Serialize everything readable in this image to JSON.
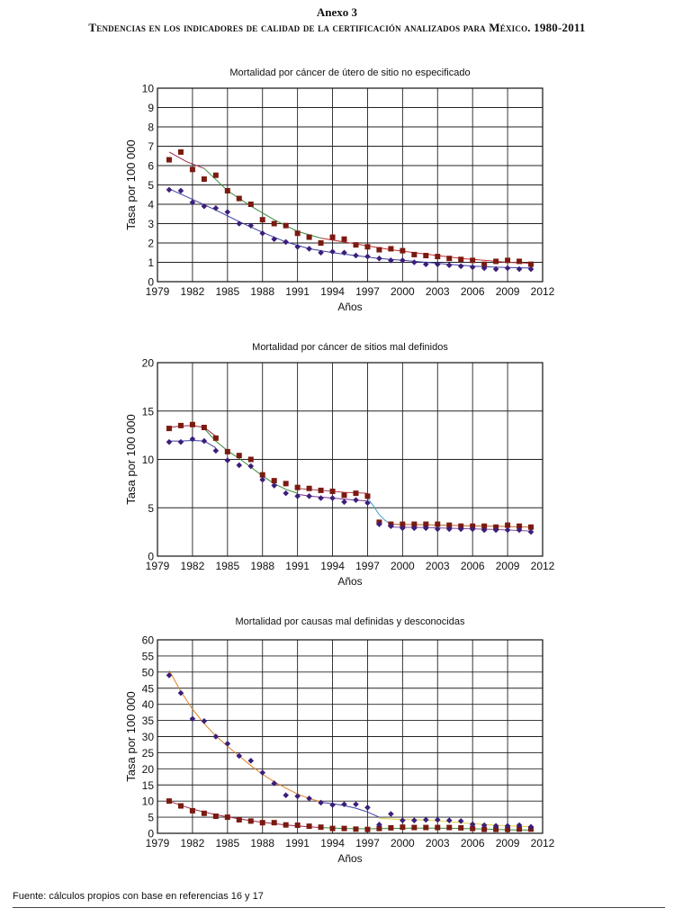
{
  "header": {
    "annex": "Anexo 3",
    "title": "Tendencias en los indicadores de calidad de la certificación analizados para México. 1980-2011"
  },
  "footer": {
    "source": "Fuente: cálculos propios con base en referencias 16 y 17"
  },
  "colors": {
    "series_a": "#7b1a10",
    "series_b": "#3b1e7a"
  },
  "chart_data": [
    {
      "type": "scatter",
      "title": "Mortalidad por cáncer de útero de sitio no especificado",
      "xlabel": "Años",
      "ylabel": "Tasa por 100 000",
      "xlim": [
        1979,
        2012
      ],
      "ylim": [
        0,
        10
      ],
      "xticks": [
        1979,
        1982,
        1985,
        1988,
        1991,
        1994,
        1997,
        2000,
        2003,
        2006,
        2009,
        2012
      ],
      "yticks": [
        0,
        1,
        2,
        3,
        4,
        5,
        6,
        7,
        8,
        9,
        10
      ],
      "grid": true,
      "x": [
        1980,
        1981,
        1982,
        1983,
        1984,
        1985,
        1986,
        1987,
        1988,
        1989,
        1990,
        1991,
        1992,
        1993,
        1994,
        1995,
        1996,
        1997,
        1998,
        1999,
        2000,
        2001,
        2002,
        2003,
        2004,
        2005,
        2006,
        2007,
        2008,
        2009,
        2010,
        2011
      ],
      "series": [
        {
          "name": "cuadrados",
          "marker": "square",
          "color": "#7b1a10",
          "values": [
            6.3,
            6.7,
            5.8,
            5.3,
            5.5,
            4.7,
            4.3,
            4.0,
            3.2,
            3.0,
            2.9,
            2.5,
            2.3,
            2.0,
            2.3,
            2.2,
            1.9,
            1.8,
            1.65,
            1.7,
            1.6,
            1.4,
            1.35,
            1.3,
            1.2,
            1.15,
            1.1,
            0.9,
            1.05,
            1.1,
            1.05,
            0.9
          ]
        },
        {
          "name": "rombos",
          "marker": "diamond",
          "color": "#3b1e7a",
          "values": [
            4.75,
            4.7,
            4.1,
            3.9,
            3.8,
            3.6,
            3.0,
            2.9,
            2.5,
            2.2,
            2.05,
            1.8,
            1.7,
            1.5,
            1.55,
            1.5,
            1.35,
            1.3,
            1.2,
            1.1,
            1.1,
            1.0,
            0.9,
            0.9,
            0.85,
            0.8,
            0.75,
            0.7,
            0.65,
            0.7,
            0.65,
            0.65
          ]
        }
      ],
      "trend_lines": [
        {
          "color": "#3a3fa0",
          "x": [
            1980,
            1982,
            1984,
            1986,
            1988,
            1990,
            1992,
            1994,
            1996,
            1998,
            2000,
            2002,
            2004,
            2006,
            2008,
            2011
          ],
          "y": [
            4.8,
            4.25,
            3.7,
            3.1,
            2.55,
            2.05,
            1.7,
            1.5,
            1.35,
            1.2,
            1.1,
            1.0,
            0.9,
            0.8,
            0.75,
            0.7
          ]
        },
        {
          "color": "#9a2a4a",
          "x": [
            1980,
            1981.5,
            1983
          ],
          "y": [
            6.7,
            6.2,
            5.85
          ]
        },
        {
          "color": "#3a8a3a",
          "x": [
            1983,
            1985,
            1987,
            1989,
            1991,
            1993
          ],
          "y": [
            5.85,
            4.7,
            3.9,
            3.2,
            2.6,
            2.25
          ]
        },
        {
          "color": "#c03030",
          "x": [
            1993,
            1995,
            1997,
            1999,
            2001,
            2003,
            2005,
            2007,
            2009,
            2011
          ],
          "y": [
            2.25,
            2.05,
            1.85,
            1.65,
            1.5,
            1.35,
            1.2,
            1.1,
            1.0,
            0.95
          ]
        }
      ]
    },
    {
      "type": "scatter",
      "title": "Mortalidad por cáncer de sitios mal definidos",
      "xlabel": "Años",
      "ylabel": "Tasa por 100 000",
      "xlim": [
        1979,
        2012
      ],
      "ylim": [
        0,
        20
      ],
      "xticks": [
        1979,
        1982,
        1985,
        1988,
        1991,
        1994,
        1997,
        2000,
        2003,
        2006,
        2009,
        2012
      ],
      "yticks": [
        0,
        5,
        10,
        15,
        20
      ],
      "grid": true,
      "x": [
        1980,
        1981,
        1982,
        1983,
        1984,
        1985,
        1986,
        1987,
        1988,
        1989,
        1990,
        1991,
        1992,
        1993,
        1994,
        1995,
        1996,
        1997,
        1998,
        1999,
        2000,
        2001,
        2002,
        2003,
        2004,
        2005,
        2006,
        2007,
        2008,
        2009,
        2010,
        2011
      ],
      "series": [
        {
          "name": "cuadrados",
          "marker": "square",
          "color": "#7b1a10",
          "values": [
            13.2,
            13.5,
            13.6,
            13.3,
            12.2,
            10.8,
            10.4,
            10.0,
            8.4,
            7.8,
            7.5,
            7.1,
            7.0,
            6.8,
            6.7,
            6.3,
            6.5,
            6.2,
            3.5,
            3.3,
            3.3,
            3.3,
            3.3,
            3.3,
            3.2,
            3.1,
            3.1,
            3.1,
            3.0,
            3.2,
            3.1,
            3.0
          ]
        },
        {
          "name": "rombos",
          "marker": "diamond",
          "color": "#3b1e7a",
          "values": [
            11.8,
            11.8,
            12.1,
            11.9,
            10.9,
            9.9,
            9.4,
            9.3,
            7.9,
            7.3,
            6.5,
            6.2,
            6.2,
            6.0,
            6.0,
            5.6,
            5.8,
            5.5,
            3.3,
            3.1,
            2.9,
            2.9,
            2.9,
            2.8,
            2.8,
            2.8,
            2.8,
            2.7,
            2.7,
            2.7,
            2.7,
            2.5
          ]
        }
      ],
      "trend_lines": [
        {
          "color": "#3a3fa0",
          "x": [
            1980,
            1981,
            1982,
            1983,
            1984
          ],
          "y": [
            11.9,
            11.9,
            11.95,
            11.9,
            11.2
          ]
        },
        {
          "color": "#3a8a3a",
          "x": [
            1983,
            1984,
            1985,
            1986,
            1987,
            1988,
            1989,
            1990,
            1991
          ],
          "y": [
            13.2,
            11.9,
            10.9,
            10.1,
            9.2,
            8.3,
            7.5,
            6.9,
            6.5
          ]
        },
        {
          "color": "#9a2a4a",
          "x": [
            1980,
            1981,
            1982,
            1983,
            1984
          ],
          "y": [
            13.3,
            13.45,
            13.5,
            13.3,
            12.4
          ]
        },
        {
          "color": "#7a3090",
          "x": [
            1991,
            1992,
            1993,
            1994,
            1995,
            1996,
            1997
          ],
          "y": [
            6.4,
            6.2,
            6.1,
            6.0,
            5.9,
            5.8,
            5.7
          ]
        },
        {
          "color": "#b04050",
          "x": [
            1991,
            1993,
            1995,
            1997
          ],
          "y": [
            7.0,
            6.8,
            6.6,
            6.5
          ]
        },
        {
          "color": "#40a0c0",
          "x": [
            1997,
            1997.5,
            1998,
            1998.5,
            1999
          ],
          "y": [
            6.0,
            5.2,
            4.3,
            3.7,
            3.3
          ]
        },
        {
          "color": "#c06030",
          "x": [
            1999,
            2002,
            2005,
            2008,
            2011
          ],
          "y": [
            3.3,
            3.25,
            3.15,
            3.1,
            3.0
          ]
        },
        {
          "color": "#8050a0",
          "x": [
            1999,
            2002,
            2005,
            2008,
            2011
          ],
          "y": [
            3.0,
            2.95,
            2.85,
            2.75,
            2.6
          ]
        }
      ]
    },
    {
      "type": "scatter",
      "title": "Mortalidad por causas mal definidas y desconocidas",
      "xlabel": "Años",
      "ylabel": "Tasa por 100 000",
      "xlim": [
        1979,
        2012
      ],
      "ylim": [
        0,
        60
      ],
      "xticks": [
        1979,
        1982,
        1985,
        1988,
        1991,
        1994,
        1997,
        2000,
        2003,
        2006,
        2009,
        2012
      ],
      "yticks": [
        0,
        5,
        10,
        15,
        20,
        25,
        30,
        35,
        40,
        45,
        50,
        55,
        60
      ],
      "grid": true,
      "x": [
        1980,
        1981,
        1982,
        1983,
        1984,
        1985,
        1986,
        1987,
        1988,
        1989,
        1990,
        1991,
        1992,
        1993,
        1994,
        1995,
        1996,
        1997,
        1998,
        1999,
        2000,
        2001,
        2002,
        2003,
        2004,
        2005,
        2006,
        2007,
        2008,
        2009,
        2010,
        2011
      ],
      "series": [
        {
          "name": "cuadrados",
          "marker": "square",
          "color": "#7b1a10",
          "values": [
            10,
            8.5,
            7,
            6.2,
            5.3,
            5,
            4.2,
            3.8,
            3.3,
            3.3,
            2.6,
            2.5,
            2.2,
            1.9,
            1.5,
            1.5,
            1.3,
            1.2,
            1.5,
            1.7,
            1.9,
            1.8,
            1.8,
            1.8,
            1.8,
            1.7,
            1.5,
            1.2,
            1.2,
            1.2,
            1.3,
            1.3
          ]
        },
        {
          "name": "rombos",
          "marker": "diamond",
          "color": "#3b1e7a",
          "values": [
            49,
            43.5,
            35.5,
            34.8,
            30,
            27.8,
            24,
            22.5,
            18.8,
            15.5,
            11.8,
            11.5,
            10.8,
            9.5,
            8.8,
            9,
            9,
            8,
            2.7,
            6,
            4,
            4,
            4.2,
            4.2,
            4,
            3.8,
            2.8,
            2.5,
            2.3,
            2.3,
            2.5,
            2
          ]
        }
      ],
      "trend_lines": [
        {
          "color": "#e08020",
          "x": [
            1980,
            1981,
            1982,
            1983,
            1984,
            1985,
            1986,
            1987,
            1988,
            1989,
            1990,
            1991,
            1992,
            1993
          ],
          "y": [
            50.5,
            44,
            38.5,
            34,
            30.2,
            27,
            24,
            21,
            18.3,
            16,
            14,
            12.2,
            10.8,
            9.8
          ]
        },
        {
          "color": "#3a3fa0",
          "x": [
            1993,
            1994,
            1995,
            1996,
            1997,
            1998
          ],
          "y": [
            9.6,
            9.2,
            8.6,
            7.8,
            6.6,
            5.0
          ]
        },
        {
          "color": "#e0d040",
          "x": [
            1998,
            2000,
            2002,
            2004,
            2006,
            2008,
            2010,
            2011
          ],
          "y": [
            4.6,
            4.3,
            4.1,
            3.6,
            3.0,
            2.5,
            2.2,
            2.0
          ]
        },
        {
          "color": "#9a2a4a",
          "x": [
            1980,
            1981,
            1982,
            1983,
            1984,
            1985,
            1986,
            1987,
            1988,
            1989,
            1990,
            1991,
            1992,
            1993
          ],
          "y": [
            10,
            8.7,
            7.5,
            6.6,
            5.8,
            5.1,
            4.5,
            3.9,
            3.4,
            3.0,
            2.6,
            2.3,
            2.0,
            1.8
          ]
        },
        {
          "color": "#3a8a3a",
          "x": [
            1993,
            1995,
            1997,
            1999,
            2001,
            2003,
            2005,
            2007,
            2009,
            2011
          ],
          "y": [
            1.8,
            1.5,
            1.4,
            1.5,
            1.6,
            1.6,
            1.5,
            1.3,
            1.1,
            1.0
          ]
        }
      ]
    }
  ]
}
